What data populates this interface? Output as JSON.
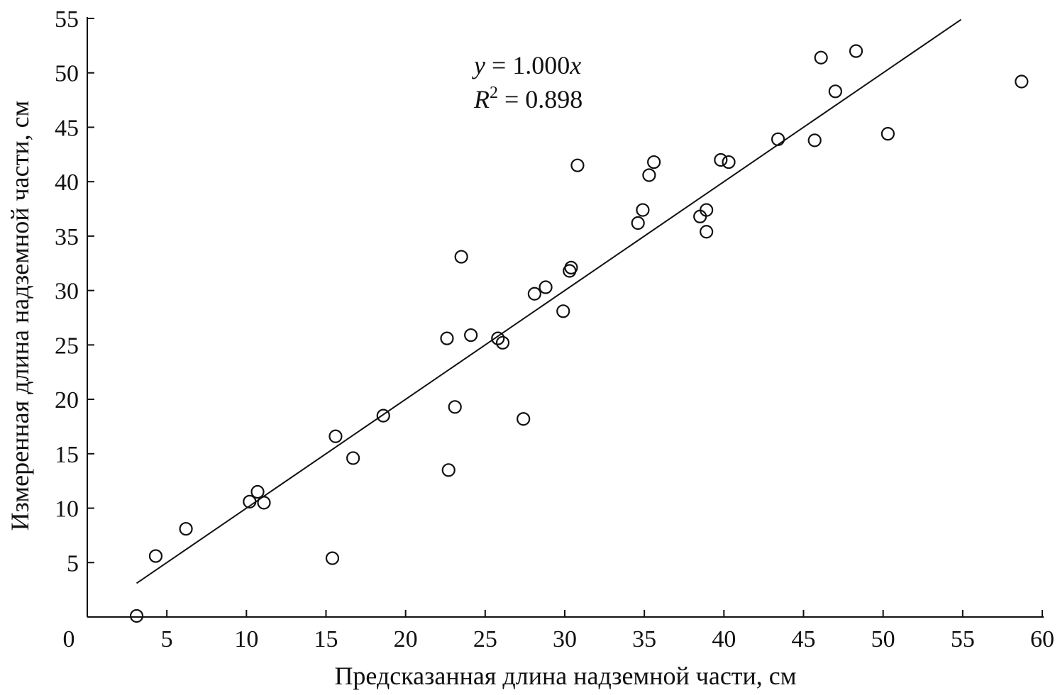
{
  "chart_data": {
    "type": "scatter",
    "title": "",
    "xlabel": "Предсказанная длина надземной части, см",
    "ylabel": "Измеренная длина надземной части, см",
    "xlim": [
      0,
      60
    ],
    "ylim": [
      0,
      55
    ],
    "x_ticks": [
      "0",
      "5",
      "10",
      "15",
      "20",
      "25",
      "30",
      "35",
      "40",
      "45",
      "50",
      "55",
      "60"
    ],
    "y_ticks": [
      "5",
      "10",
      "15",
      "20",
      "25",
      "30",
      "35",
      "40",
      "45",
      "50",
      "55"
    ],
    "grid": false,
    "annotation": {
      "line1_var": "y",
      "line1_rest": " = 1.000",
      "line1_var2": "x",
      "line2_var": "R",
      "line2_sup": "2",
      "line2_rest": " = 0.898"
    },
    "trendline": {
      "slope": 1.0,
      "intercept": 0,
      "x_range": [
        3.1,
        54.9
      ]
    },
    "points": [
      {
        "x": 3.1,
        "y": 0.1
      },
      {
        "x": 4.3,
        "y": 5.6
      },
      {
        "x": 6.2,
        "y": 8.1
      },
      {
        "x": 10.2,
        "y": 10.6
      },
      {
        "x": 10.7,
        "y": 11.5
      },
      {
        "x": 11.1,
        "y": 10.5
      },
      {
        "x": 15.4,
        "y": 5.4
      },
      {
        "x": 15.6,
        "y": 16.6
      },
      {
        "x": 16.7,
        "y": 14.6
      },
      {
        "x": 18.6,
        "y": 18.5
      },
      {
        "x": 22.6,
        "y": 25.6
      },
      {
        "x": 22.7,
        "y": 13.5
      },
      {
        "x": 23.1,
        "y": 19.3
      },
      {
        "x": 23.5,
        "y": 33.1
      },
      {
        "x": 24.1,
        "y": 25.9
      },
      {
        "x": 25.8,
        "y": 25.6
      },
      {
        "x": 26.1,
        "y": 25.2
      },
      {
        "x": 27.4,
        "y": 18.2
      },
      {
        "x": 28.1,
        "y": 29.7
      },
      {
        "x": 28.8,
        "y": 30.3
      },
      {
        "x": 29.9,
        "y": 28.1
      },
      {
        "x": 30.3,
        "y": 31.8
      },
      {
        "x": 30.4,
        "y": 32.1
      },
      {
        "x": 30.8,
        "y": 41.5
      },
      {
        "x": 34.6,
        "y": 36.2
      },
      {
        "x": 34.9,
        "y": 37.4
      },
      {
        "x": 35.3,
        "y": 40.6
      },
      {
        "x": 35.6,
        "y": 41.8
      },
      {
        "x": 38.5,
        "y": 36.8
      },
      {
        "x": 38.9,
        "y": 37.4
      },
      {
        "x": 38.9,
        "y": 35.4
      },
      {
        "x": 39.8,
        "y": 42.0
      },
      {
        "x": 40.3,
        "y": 41.8
      },
      {
        "x": 43.4,
        "y": 43.9
      },
      {
        "x": 45.7,
        "y": 43.8
      },
      {
        "x": 46.1,
        "y": 51.4
      },
      {
        "x": 47.0,
        "y": 48.3
      },
      {
        "x": 48.3,
        "y": 52.0
      },
      {
        "x": 50.3,
        "y": 44.4
      },
      {
        "x": 58.7,
        "y": 49.2
      }
    ]
  }
}
